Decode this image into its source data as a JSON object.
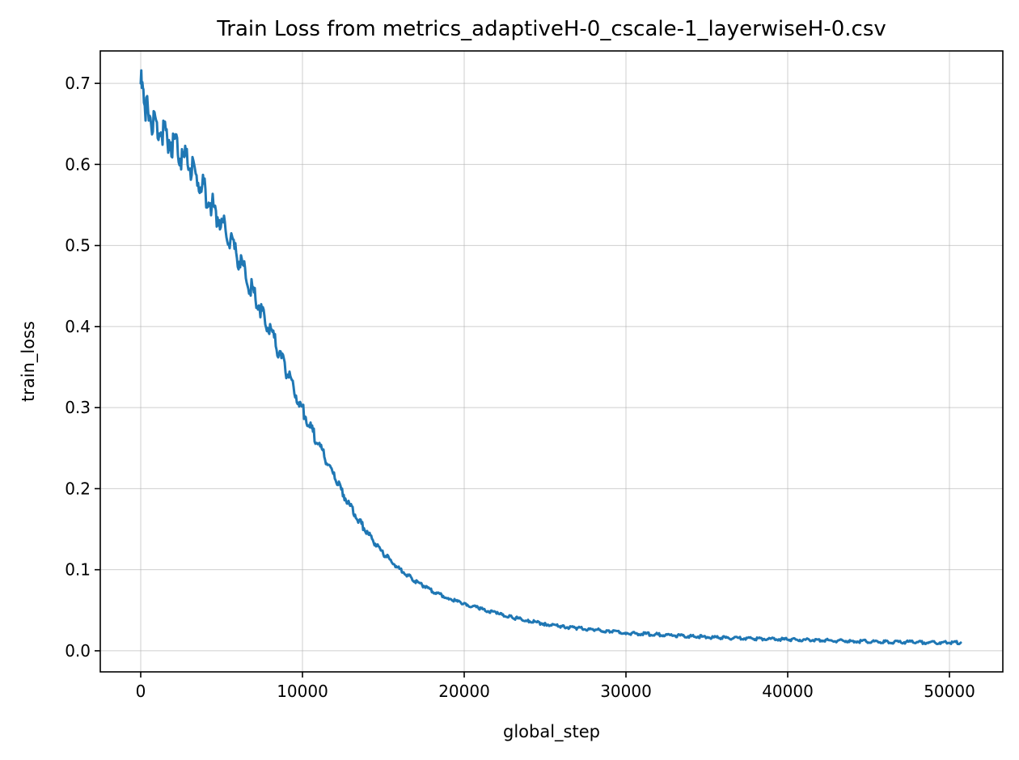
{
  "chart_data": {
    "type": "line",
    "title": "Train Loss from metrics_adaptiveH-0_cscale-1_layerwiseH-0.csv",
    "xlabel": "global_step",
    "ylabel": "train_loss",
    "xlim": [
      -2500,
      53300
    ],
    "ylim": [
      -0.026,
      0.74
    ],
    "grid": true,
    "colors": {
      "series": "#1f77b4"
    },
    "xticks": [
      0,
      10000,
      20000,
      30000,
      40000,
      50000
    ],
    "xtick_labels": [
      "0",
      "10000",
      "20000",
      "30000",
      "40000",
      "50000"
    ],
    "yticks": [
      0.0,
      0.1,
      0.2,
      0.3,
      0.4,
      0.5,
      0.6,
      0.7
    ],
    "ytick_labels": [
      "0.0",
      "0.1",
      "0.2",
      "0.3",
      "0.4",
      "0.5",
      "0.6",
      "0.7"
    ],
    "series": [
      {
        "x": [
          0,
          200,
          500,
          1000,
          1500,
          2000,
          2500,
          3000,
          3500,
          4000,
          4500,
          5000,
          5500,
          6000,
          6500,
          7000,
          7500,
          8000,
          8500,
          9000,
          9500,
          10000,
          10500,
          11000,
          11500,
          12000,
          12500,
          13000,
          13500,
          14000,
          14500,
          15000,
          15500,
          16000,
          16500,
          17000,
          17500,
          18000,
          19000,
          20000,
          21000,
          22000,
          23000,
          24000,
          25000,
          26000,
          27000,
          28000,
          29000,
          30000,
          32000,
          34000,
          36000,
          38000,
          40000,
          42000,
          44000,
          46000,
          48000,
          50000,
          50700
        ],
        "y": [
          0.7,
          0.68,
          0.662,
          0.648,
          0.638,
          0.625,
          0.612,
          0.598,
          0.583,
          0.565,
          0.547,
          0.528,
          0.508,
          0.485,
          0.462,
          0.44,
          0.418,
          0.395,
          0.37,
          0.346,
          0.322,
          0.298,
          0.275,
          0.254,
          0.233,
          0.213,
          0.195,
          0.177,
          0.161,
          0.146,
          0.132,
          0.12,
          0.11,
          0.101,
          0.093,
          0.086,
          0.08,
          0.074,
          0.065,
          0.058,
          0.052,
          0.046,
          0.041,
          0.037,
          0.033,
          0.03,
          0.028,
          0.026,
          0.024,
          0.022,
          0.02,
          0.018,
          0.016,
          0.015,
          0.014,
          0.013,
          0.012,
          0.011,
          0.0105,
          0.01,
          0.01
        ]
      }
    ]
  }
}
